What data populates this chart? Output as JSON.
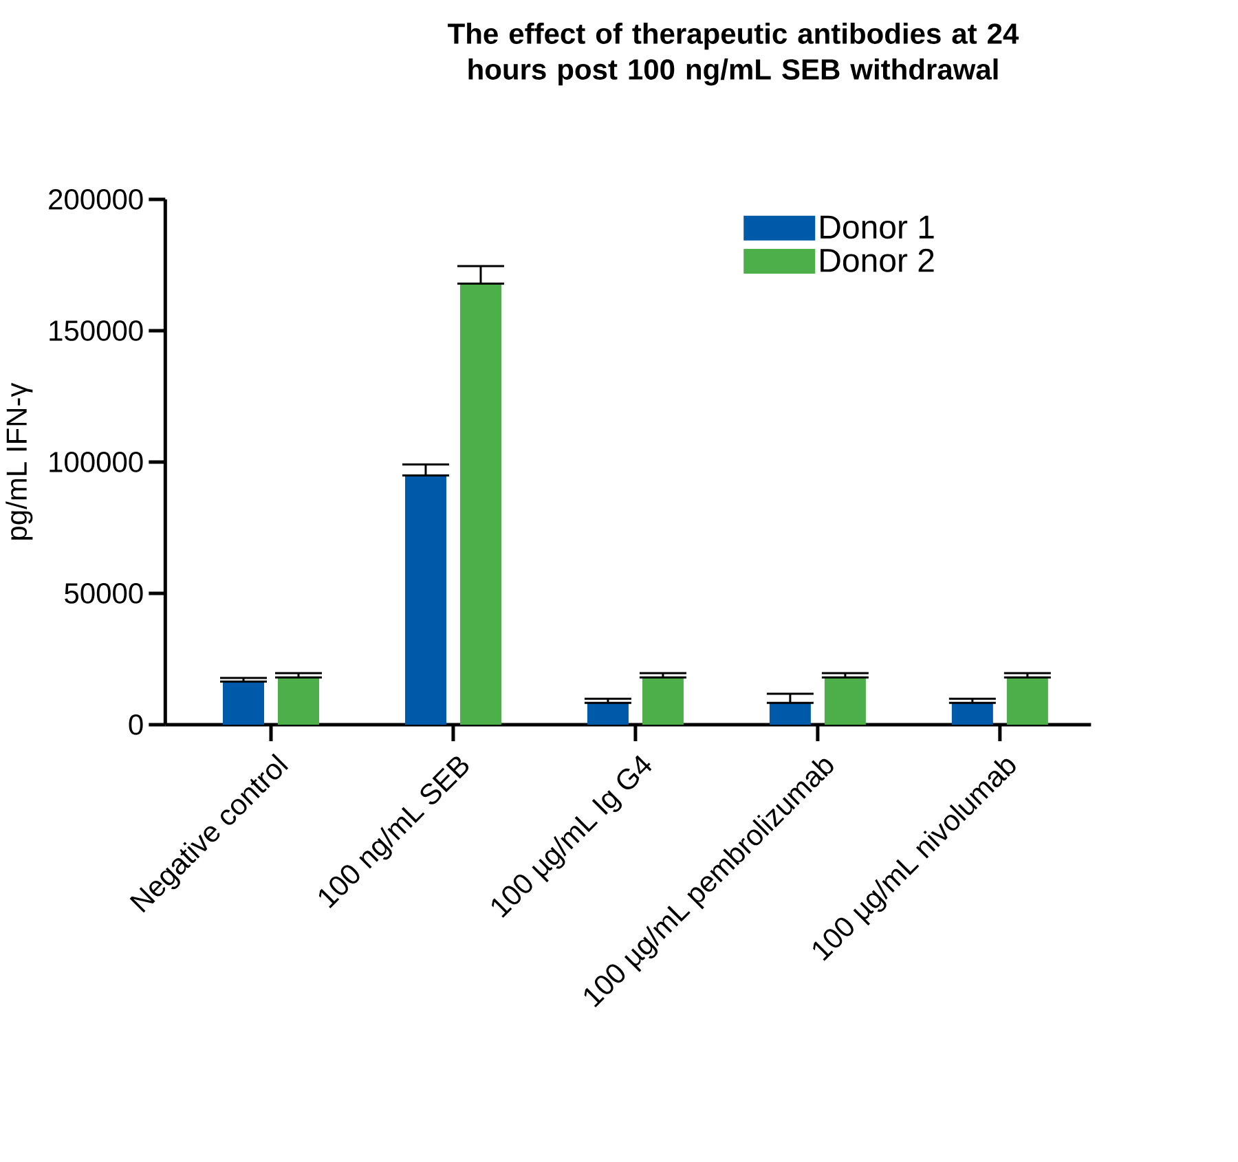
{
  "chart_data": {
    "type": "bar",
    "title": "The effect of therapeutic antibodies at 24 hours post 100 ng/mL SEB withdrawal",
    "ylabel": "pg/mL IFN-γ",
    "categories": [
      "Negative control",
      "100 ng/mL SEB",
      "100 µg/mL Ig G4",
      "100 µg/mL pembrolizumab",
      "100 µg/mL nivolumab"
    ],
    "series": [
      {
        "name": "Donor 1",
        "color": "#005aaa",
        "values": [
          16400,
          94900,
          8300,
          8300,
          8300
        ],
        "errors": [
          [
            16400,
            17800
          ],
          [
            94900,
            99100
          ],
          [
            8300,
            9900
          ],
          [
            8300,
            11800
          ],
          [
            8300,
            9900
          ]
        ]
      },
      {
        "name": "Donor 2",
        "color": "#4caf4a",
        "values": [
          18000,
          167900,
          18000,
          18000,
          18000
        ],
        "errors": [
          [
            18000,
            19600
          ],
          [
            167900,
            174600
          ],
          [
            18000,
            19600
          ],
          [
            18000,
            19600
          ],
          [
            18000,
            19600
          ]
        ]
      }
    ],
    "ylim": [
      0,
      200000
    ],
    "yticks": [
      0,
      50000,
      100000,
      150000,
      200000
    ],
    "legend": "top right",
    "grid": false
  }
}
